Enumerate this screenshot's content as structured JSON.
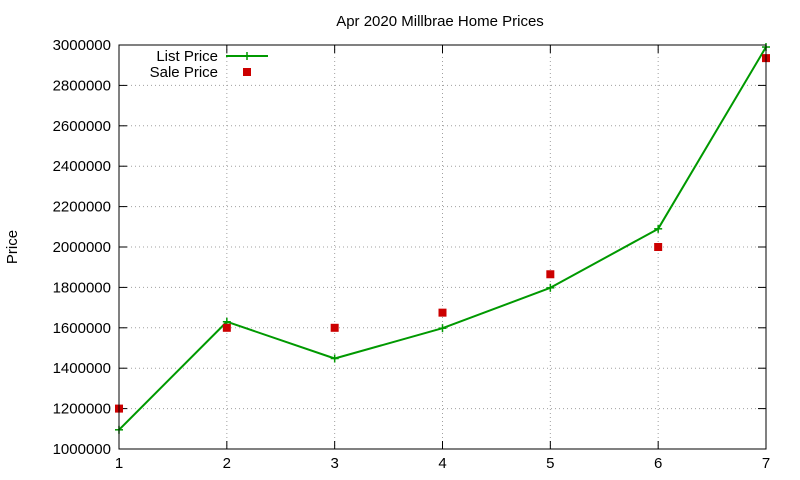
{
  "chart_data": {
    "type": "line",
    "title": "Apr 2020 Millbrae Home Prices",
    "xlabel": "",
    "ylabel": "Price",
    "x": [
      1,
      2,
      3,
      4,
      5,
      6,
      7
    ],
    "xlim": [
      1,
      7
    ],
    "ylim": [
      1000000,
      3000000
    ],
    "x_ticks": [
      "1",
      "2",
      "3",
      "4",
      "5",
      "6",
      "7"
    ],
    "y_ticks": [
      "1000000",
      "1200000",
      "1400000",
      "1600000",
      "1800000",
      "2000000",
      "2200000",
      "2400000",
      "2600000",
      "2800000",
      "3000000"
    ],
    "grid": true,
    "legend_position": "top-left",
    "series": [
      {
        "name": "List Price",
        "style": "line+cross",
        "color": "#009900",
        "values": [
          1095000,
          1630000,
          1448000,
          1598000,
          1798000,
          2090000,
          2990000
        ]
      },
      {
        "name": "Sale Price",
        "style": "square",
        "color": "#cc0000",
        "values": [
          1200000,
          1600000,
          1600000,
          1675000,
          1865000,
          2000000,
          2935000
        ]
      }
    ]
  }
}
